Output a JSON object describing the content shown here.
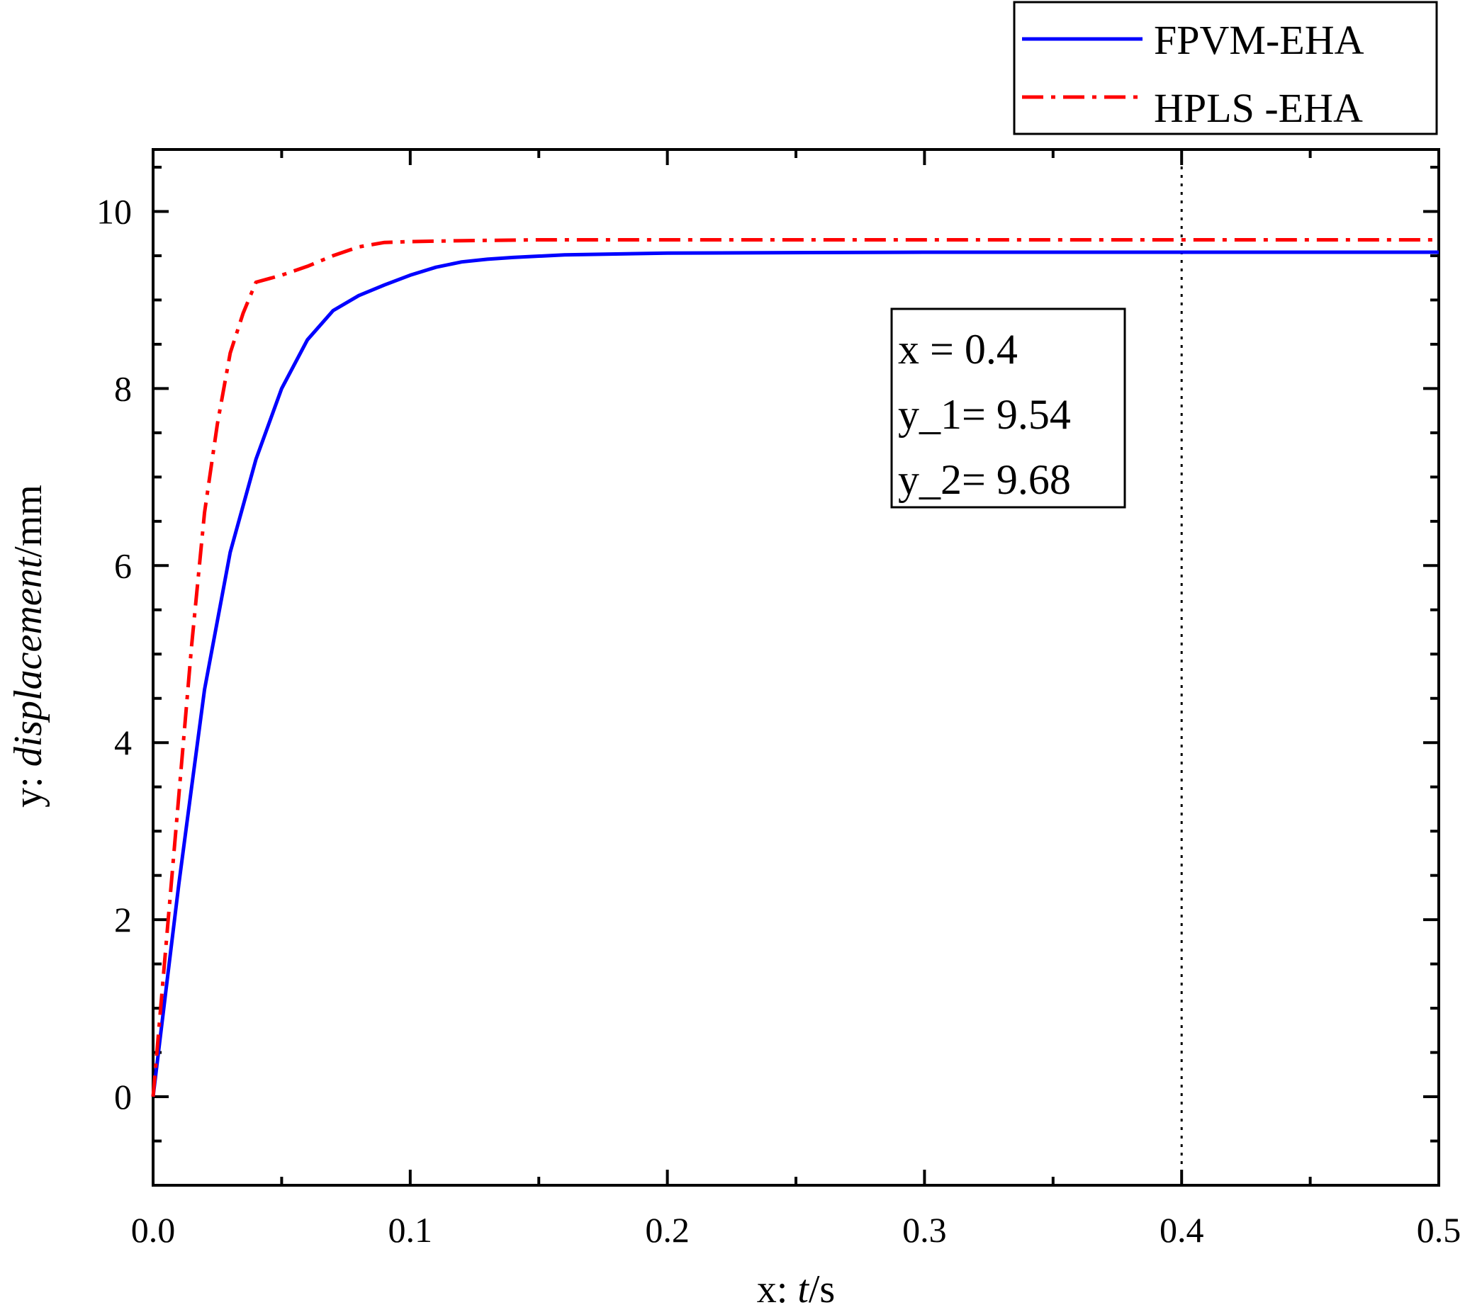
{
  "chart_data": {
    "type": "line",
    "xlabel": {
      "prefix": "x: ",
      "var": "t",
      "unit": "/s"
    },
    "ylabel": {
      "prefix": "y: ",
      "var": "displacement",
      "unit": "/mm"
    },
    "xlim": [
      0,
      0.5
    ],
    "ylim": [
      -1,
      10.7
    ],
    "x_ticks": [
      0.0,
      0.1,
      0.2,
      0.3,
      0.4,
      0.5
    ],
    "x_tick_labels": [
      "0.0",
      "0.1",
      "0.2",
      "0.3",
      "0.4",
      "0.5"
    ],
    "y_ticks": [
      0,
      2,
      4,
      6,
      8,
      10
    ],
    "y_tick_labels": [
      "0",
      "2",
      "4",
      "6",
      "8",
      "10"
    ],
    "grid": false,
    "legend_position": "top-right, above plot",
    "series": [
      {
        "name": "FPVM-EHA",
        "color": "#0000ff",
        "style": "solid",
        "x": [
          0,
          0.005,
          0.01,
          0.015,
          0.02,
          0.03,
          0.04,
          0.05,
          0.06,
          0.07,
          0.08,
          0.09,
          0.1,
          0.11,
          0.12,
          0.13,
          0.14,
          0.16,
          0.2,
          0.3,
          0.4,
          0.5
        ],
        "y": [
          0.0,
          1.2,
          2.4,
          3.5,
          4.6,
          6.15,
          7.2,
          8.0,
          8.55,
          8.88,
          9.05,
          9.17,
          9.28,
          9.37,
          9.43,
          9.46,
          9.48,
          9.51,
          9.53,
          9.54,
          9.54,
          9.54
        ]
      },
      {
        "name": "HPLS -EHA",
        "color": "#ff0000",
        "style": "dash-dot",
        "x": [
          0,
          0.005,
          0.01,
          0.015,
          0.02,
          0.025,
          0.03,
          0.035,
          0.04,
          0.05,
          0.06,
          0.07,
          0.08,
          0.09,
          0.1,
          0.12,
          0.15,
          0.2,
          0.3,
          0.4,
          0.5
        ],
        "y": [
          0.0,
          1.7,
          3.4,
          5.1,
          6.6,
          7.6,
          8.4,
          8.85,
          9.2,
          9.28,
          9.38,
          9.5,
          9.6,
          9.65,
          9.66,
          9.67,
          9.68,
          9.68,
          9.68,
          9.68,
          9.68
        ]
      }
    ],
    "annotations": {
      "vertical_marker_x": 0.4,
      "readout_lines": [
        "x  = 0.4",
        "y_1= 9.54",
        "y_2= 9.68"
      ]
    }
  }
}
